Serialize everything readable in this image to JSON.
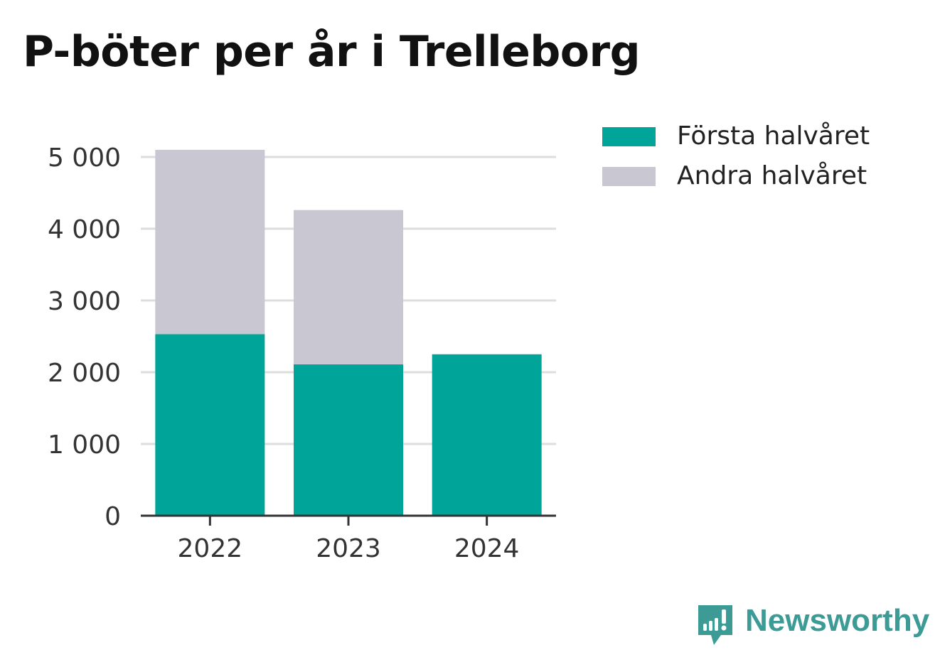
{
  "chart_data": {
    "type": "bar",
    "stacked": true,
    "title": "P-böter per år i Trelleborg",
    "categories": [
      "2022",
      "2023",
      "2024"
    ],
    "series": [
      {
        "name": "Första halvåret",
        "color": "#00a499",
        "values": [
          2530,
          2110,
          2250
        ]
      },
      {
        "name": "Andra halvåret",
        "color": "#c8c7d2",
        "values": [
          2570,
          2150,
          null
        ]
      }
    ],
    "ylim": [
      0,
      5000
    ],
    "yticks": [
      0,
      1000,
      2000,
      3000,
      4000,
      5000
    ],
    "ytick_labels": [
      "0",
      "1 000",
      "2 000",
      "3 000",
      "4 000",
      "5 000"
    ],
    "grid": true,
    "legend_position": "top-right"
  },
  "brand": {
    "name": "Newsworthy",
    "color": "#3d9b96",
    "icon": "newsworthy-logo-icon"
  }
}
